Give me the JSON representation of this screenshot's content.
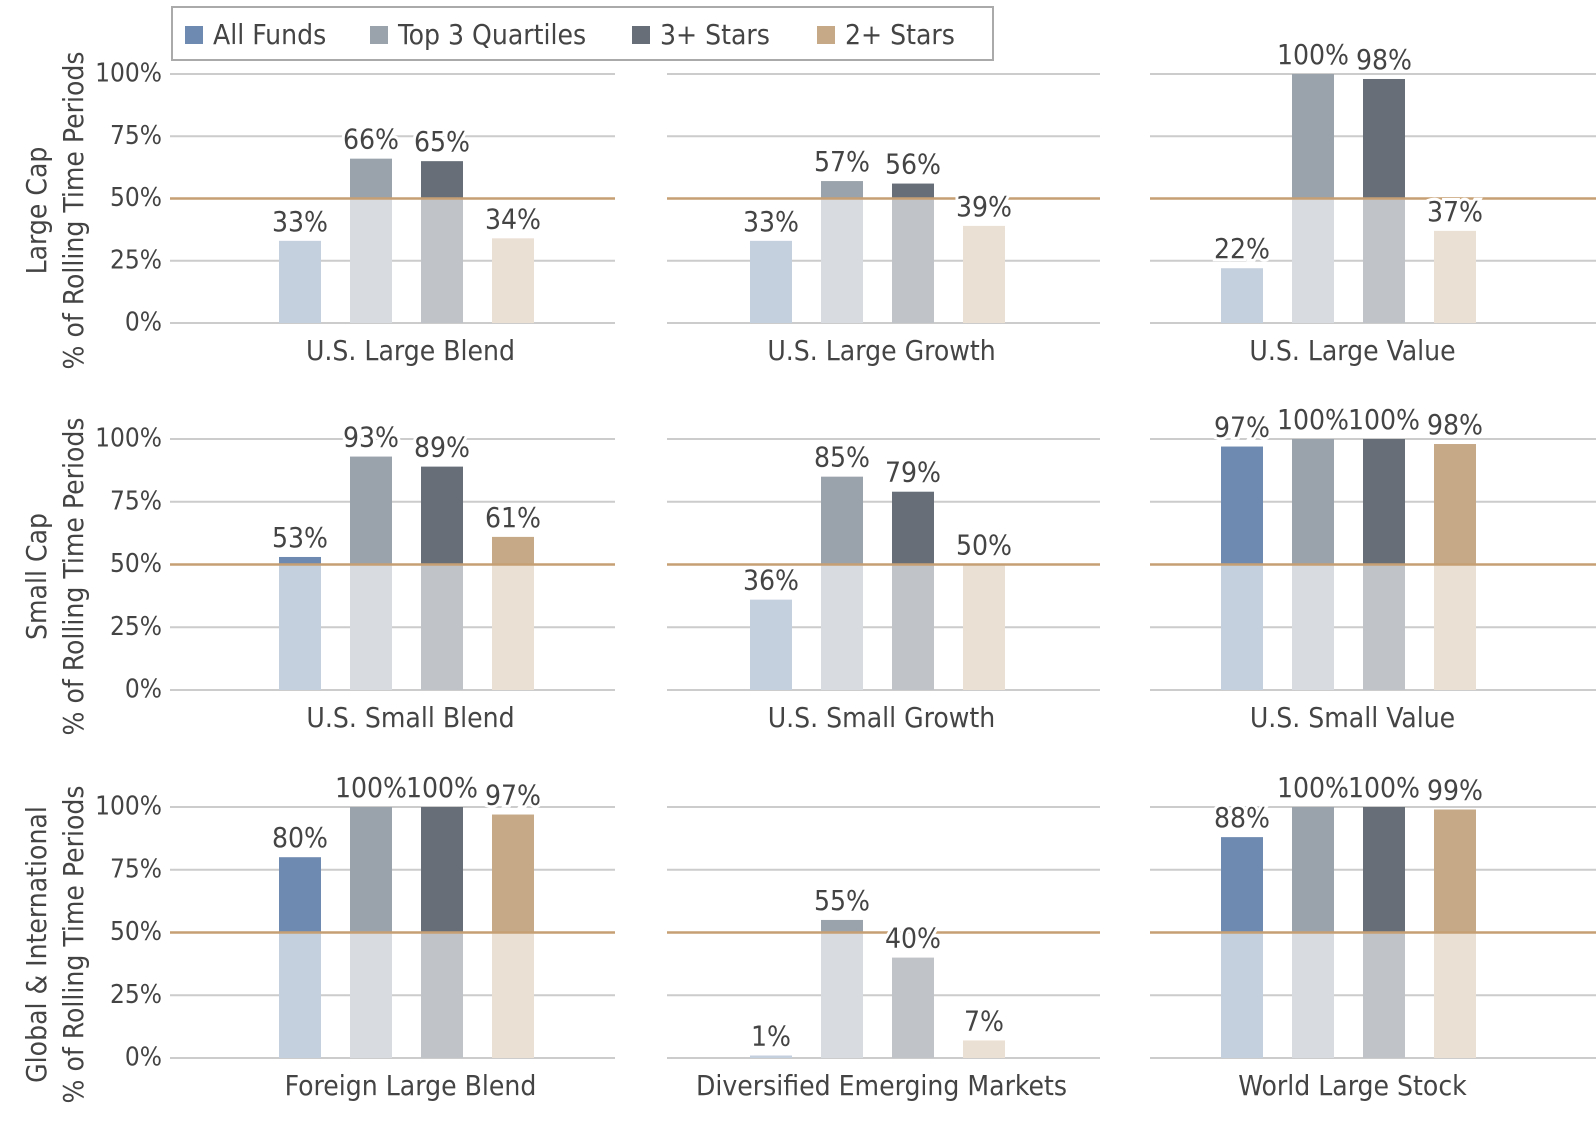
{
  "legend": [
    {
      "name": "All Funds",
      "color": "#6f8ab0",
      "light": "#c5d0df"
    },
    {
      "name": "Top 3 Quartiles",
      "color": "#9aa2ab",
      "light": "#d8dbdf"
    },
    {
      "name": "3+ Stars",
      "color": "#676e78",
      "light": "#c0c3c7"
    },
    {
      "name": "2+ Stars",
      "color": "#c6a987",
      "light": "#ebe0d4"
    }
  ],
  "ylabel": "% of Rolling Time Periods",
  "ylim": [
    0,
    100
  ],
  "yticks": [
    {
      "value": 0,
      "label": "0%"
    },
    {
      "value": 25,
      "label": "25%"
    },
    {
      "value": 50,
      "label": "50%"
    },
    {
      "value": 75,
      "label": "75%"
    },
    {
      "value": 100,
      "label": "100%"
    }
  ],
  "threshold": 50,
  "threshold_color": "#c6a074",
  "grid": true,
  "chart_data": [
    {
      "type": "bar",
      "row_label": "Large Cap",
      "xlabel": "U.S. Large Blend",
      "values": [
        33,
        66,
        65,
        34
      ],
      "value_labels": [
        "33%",
        "66%",
        "65%",
        "34%"
      ]
    },
    {
      "type": "bar",
      "xlabel": "U.S. Large Growth",
      "values": [
        33,
        57,
        56,
        39
      ],
      "value_labels": [
        "33%",
        "57%",
        "56%",
        "39%"
      ]
    },
    {
      "type": "bar",
      "xlabel": "U.S. Large Value",
      "values": [
        22,
        100,
        98,
        37
      ],
      "value_labels": [
        "22%",
        "100%",
        "98%",
        "37%"
      ]
    },
    {
      "type": "bar",
      "row_label": "Small Cap",
      "xlabel": "U.S. Small Blend",
      "values": [
        53,
        93,
        89,
        61
      ],
      "value_labels": [
        "53%",
        "93%",
        "89%",
        "61%"
      ]
    },
    {
      "type": "bar",
      "xlabel": "U.S. Small Growth",
      "values": [
        36,
        85,
        79,
        50
      ],
      "value_labels": [
        "36%",
        "85%",
        "79%",
        "50%"
      ]
    },
    {
      "type": "bar",
      "xlabel": "U.S. Small Value",
      "values": [
        97,
        100,
        100,
        98
      ],
      "value_labels": [
        "97%",
        "100%",
        "100%",
        "98%"
      ]
    },
    {
      "type": "bar",
      "row_label": "Global & International",
      "xlabel": "Foreign Large Blend",
      "values": [
        80,
        100,
        100,
        97
      ],
      "value_labels": [
        "80%",
        "100%",
        "100%",
        "97%"
      ]
    },
    {
      "type": "bar",
      "xlabel": "Diversified Emerging Markets",
      "values": [
        1,
        55,
        40,
        7
      ],
      "value_labels": [
        "1%",
        "55%",
        "40%",
        "7%"
      ]
    },
    {
      "type": "bar",
      "xlabel": "World Large Stock",
      "values": [
        88,
        100,
        100,
        99
      ],
      "value_labels": [
        "88%",
        "100%",
        "100%",
        "99%"
      ]
    }
  ]
}
